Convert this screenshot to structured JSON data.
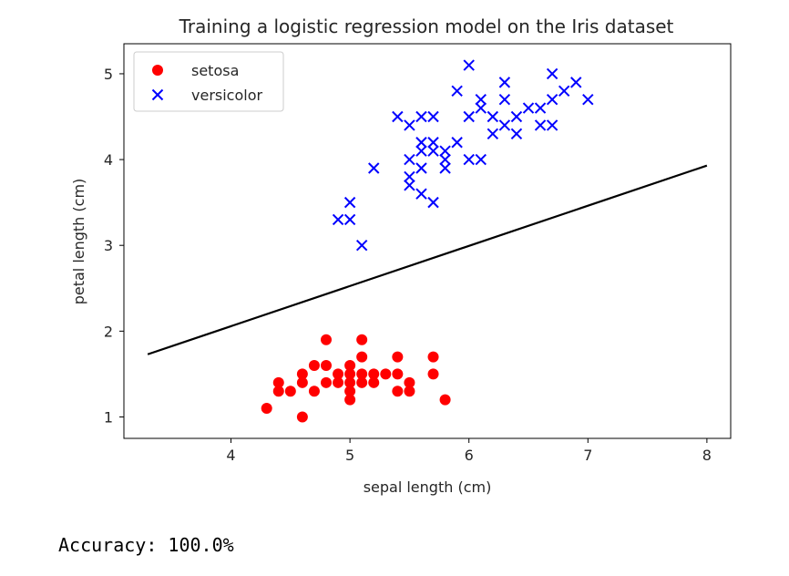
{
  "chart_data": {
    "type": "scatter",
    "title": "Training a logistic regression model on the Iris dataset",
    "xlabel": "sepal length (cm)",
    "ylabel": "petal length (cm)",
    "xlim": [
      3.1,
      8.2
    ],
    "ylim": [
      0.75,
      5.35
    ],
    "xticks": [
      4,
      5,
      6,
      7,
      8
    ],
    "yticks": [
      1,
      2,
      3,
      4,
      5
    ],
    "grid": false,
    "legend_position": "top-left",
    "series": [
      {
        "name": "setosa",
        "marker": "circle",
        "color": "#ff0000",
        "points": [
          [
            4.3,
            1.1
          ],
          [
            4.4,
            1.4
          ],
          [
            4.4,
            1.3
          ],
          [
            4.5,
            1.3
          ],
          [
            4.6,
            1.0
          ],
          [
            4.6,
            1.4
          ],
          [
            4.6,
            1.5
          ],
          [
            4.7,
            1.3
          ],
          [
            4.7,
            1.6
          ],
          [
            4.8,
            1.9
          ],
          [
            4.8,
            1.6
          ],
          [
            4.8,
            1.4
          ],
          [
            4.9,
            1.5
          ],
          [
            4.9,
            1.4
          ],
          [
            5.0,
            1.2
          ],
          [
            5.0,
            1.3
          ],
          [
            5.0,
            1.4
          ],
          [
            5.0,
            1.5
          ],
          [
            5.0,
            1.6
          ],
          [
            5.1,
            1.4
          ],
          [
            5.1,
            1.5
          ],
          [
            5.1,
            1.7
          ],
          [
            5.1,
            1.9
          ],
          [
            5.2,
            1.4
          ],
          [
            5.2,
            1.5
          ],
          [
            5.3,
            1.5
          ],
          [
            5.4,
            1.3
          ],
          [
            5.4,
            1.5
          ],
          [
            5.4,
            1.7
          ],
          [
            5.5,
            1.3
          ],
          [
            5.5,
            1.4
          ],
          [
            5.7,
            1.5
          ],
          [
            5.7,
            1.7
          ],
          [
            5.8,
            1.2
          ]
        ]
      },
      {
        "name": "versicolor",
        "marker": "x",
        "color": "#0000ff",
        "points": [
          [
            4.9,
            3.3
          ],
          [
            5.0,
            3.3
          ],
          [
            5.0,
            3.5
          ],
          [
            5.1,
            3.0
          ],
          [
            5.2,
            3.9
          ],
          [
            5.4,
            4.5
          ],
          [
            5.5,
            3.7
          ],
          [
            5.5,
            3.8
          ],
          [
            5.5,
            4.0
          ],
          [
            5.5,
            4.4
          ],
          [
            5.6,
            3.6
          ],
          [
            5.6,
            3.9
          ],
          [
            5.6,
            4.1
          ],
          [
            5.6,
            4.2
          ],
          [
            5.6,
            4.5
          ],
          [
            5.7,
            3.5
          ],
          [
            5.7,
            4.1
          ],
          [
            5.7,
            4.2
          ],
          [
            5.7,
            4.5
          ],
          [
            5.8,
            3.9
          ],
          [
            5.8,
            4.0
          ],
          [
            5.8,
            4.1
          ],
          [
            5.9,
            4.2
          ],
          [
            5.9,
            4.8
          ],
          [
            6.0,
            4.0
          ],
          [
            6.0,
            4.5
          ],
          [
            6.0,
            5.1
          ],
          [
            6.1,
            4.0
          ],
          [
            6.1,
            4.6
          ],
          [
            6.1,
            4.7
          ],
          [
            6.2,
            4.3
          ],
          [
            6.2,
            4.5
          ],
          [
            6.3,
            4.4
          ],
          [
            6.3,
            4.7
          ],
          [
            6.3,
            4.9
          ],
          [
            6.4,
            4.3
          ],
          [
            6.4,
            4.5
          ],
          [
            6.5,
            4.6
          ],
          [
            6.6,
            4.4
          ],
          [
            6.6,
            4.6
          ],
          [
            6.7,
            4.4
          ],
          [
            6.7,
            4.7
          ],
          [
            6.7,
            5.0
          ],
          [
            6.8,
            4.8
          ],
          [
            6.9,
            4.9
          ],
          [
            7.0,
            4.7
          ]
        ]
      }
    ],
    "decision_boundary": {
      "color": "#000000",
      "points": [
        [
          3.3,
          1.73
        ],
        [
          8.0,
          3.93
        ]
      ]
    }
  },
  "output": {
    "text": "Accuracy: 100.0%"
  }
}
